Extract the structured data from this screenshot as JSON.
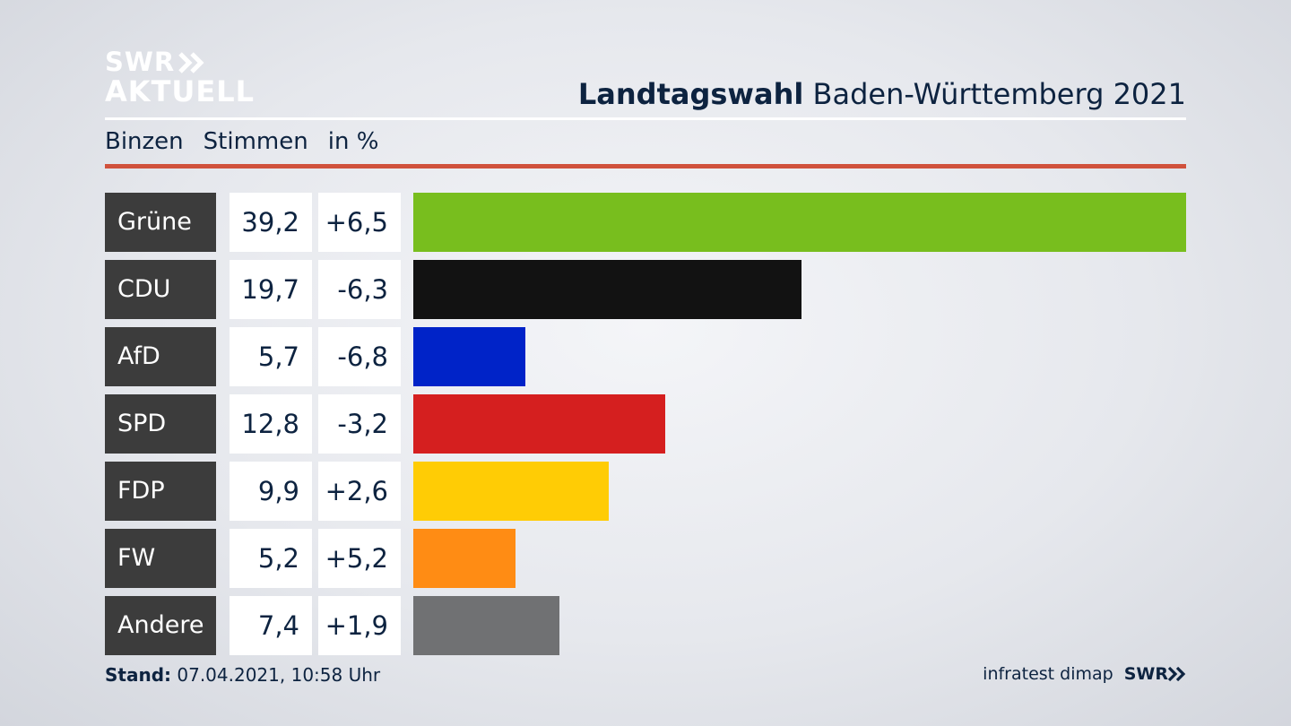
{
  "header": {
    "logo_line1": "SWR",
    "logo_line2": "AKTUELL",
    "title_bold": "Landtagswahl",
    "title_rest": " Baden-Württemberg 2021",
    "subhead": [
      "Binzen",
      "Stimmen",
      "in %"
    ]
  },
  "footer": {
    "stand_label": "Stand:",
    "stand_value": " 07.04.2021, 10:58 Uhr",
    "source": "infratest dimap",
    "brand": "SWR"
  },
  "colors": {
    "accent_red": "#d0513c",
    "party_label_bg": "#3c3c3c"
  },
  "chart_data": {
    "type": "bar",
    "orientation": "horizontal",
    "categories": [
      "Grüne",
      "CDU",
      "AfD",
      "SPD",
      "FDP",
      "FW",
      "Andere"
    ],
    "values": [
      39.2,
      19.7,
      5.7,
      12.8,
      9.9,
      5.2,
      7.4
    ],
    "values_label": [
      "39,2",
      "19,7",
      "5,7",
      "12,8",
      "9,9",
      "5,2",
      "7,4"
    ],
    "changes": [
      6.5,
      -6.3,
      -6.8,
      -3.2,
      2.6,
      5.2,
      1.9
    ],
    "changes_label": [
      "+6,5",
      "-6,3",
      "-6,8",
      "-3,2",
      "+2,6",
      "+5,2",
      "+1,9"
    ],
    "bar_colors": [
      "#78be1e",
      "#121212",
      "#0023c8",
      "#d51f1f",
      "#ffcc05",
      "#ff8c14",
      "#707173"
    ],
    "xlim": [
      0,
      39.2
    ],
    "grid": false,
    "legend": "none"
  }
}
